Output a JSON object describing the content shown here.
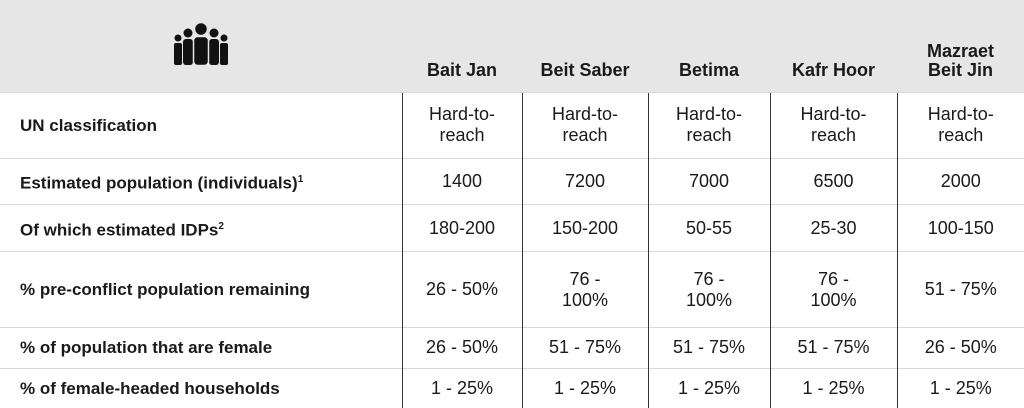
{
  "table": {
    "columns": [
      "Bait Jan",
      "Beit Saber",
      "Betima",
      "Kafr Hoor",
      "Mazraet Beit Jin"
    ],
    "rows": [
      {
        "label": "UN classification",
        "cells": [
          "Hard-to-reach",
          "Hard-to-reach",
          "Hard-to-reach",
          "Hard-to-reach",
          "Hard-to-reach"
        ]
      },
      {
        "label": "Estimated population (individuals)",
        "note": "1",
        "cells": [
          "1400",
          "7200",
          "7000",
          "6500",
          "2000"
        ]
      },
      {
        "label": "Of which estimated IDPs",
        "note": "2",
        "cells": [
          "180-200",
          "150-200",
          "50-55",
          "25-30",
          "100-150"
        ]
      },
      {
        "label": "% pre-conflict population remaining",
        "cells": [
          "26 - 50%",
          "76 - 100%",
          "76 - 100%",
          "76 - 100%",
          "51 - 75%"
        ]
      },
      {
        "label": "% of population that are female",
        "cells": [
          "26 - 50%",
          "51 - 75%",
          "51 - 75%",
          "51 - 75%",
          "26 - 50%"
        ]
      },
      {
        "label": "% of female-headed households",
        "cells": [
          "1 - 25%",
          "1 - 25%",
          "1 - 25%",
          "1 - 25%",
          "1 - 25%"
        ]
      }
    ]
  }
}
